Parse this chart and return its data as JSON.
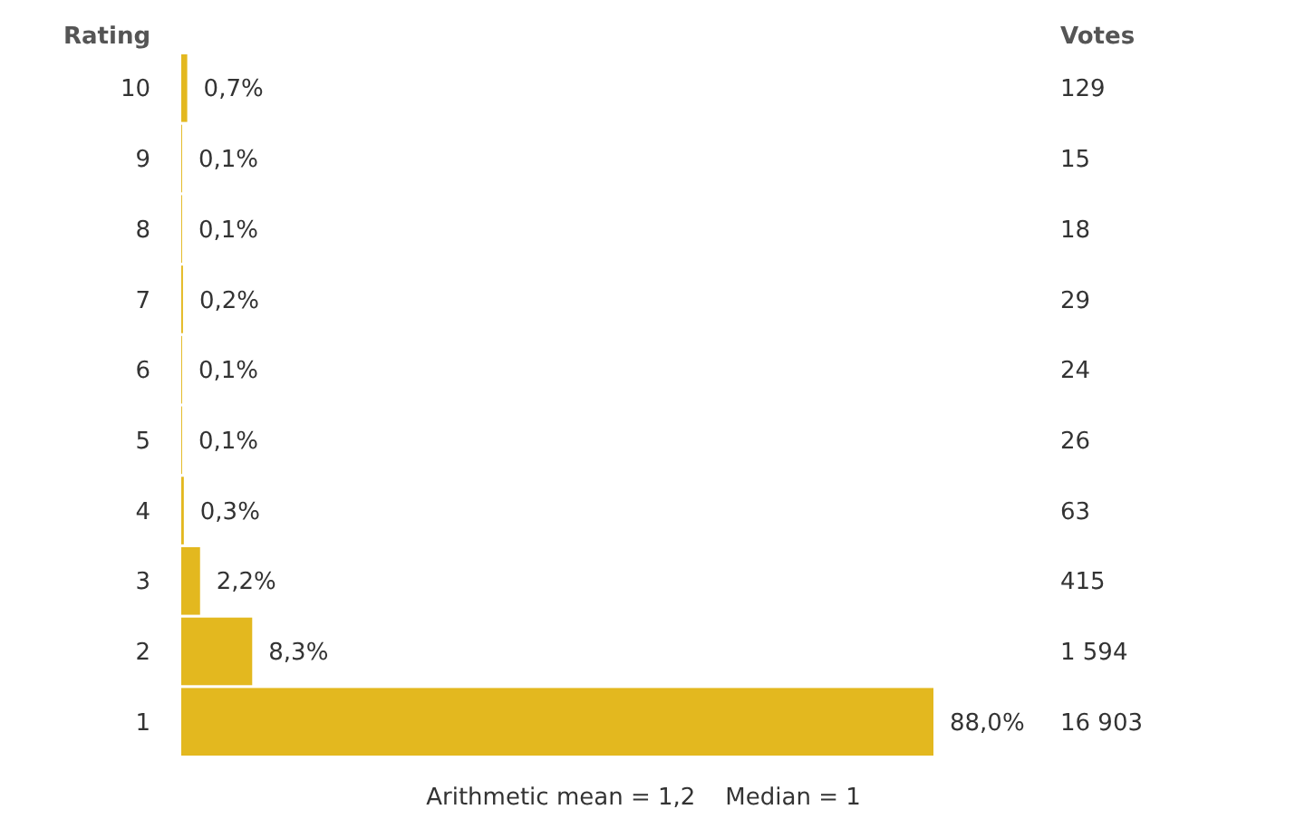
{
  "chart_data": {
    "type": "bar",
    "orientation": "horizontal",
    "ylabel": "Rating",
    "categories": [
      "10",
      "9",
      "8",
      "7",
      "6",
      "5",
      "4",
      "3",
      "2",
      "1"
    ],
    "values": [
      0.7,
      0.1,
      0.1,
      0.2,
      0.1,
      0.1,
      0.3,
      2.2,
      8.3,
      88.0
    ],
    "value_labels": [
      "0,7%",
      "0,1%",
      "0,1%",
      "0,2%",
      "0,1%",
      "0,1%",
      "0,3%",
      "2,2%",
      "8,3%",
      "88,0%"
    ],
    "color": "#e3b81f",
    "annotations": [
      "Votes",
      "129",
      "15",
      "18",
      "29",
      "24",
      "26",
      "63",
      "415",
      "1 594",
      "16 903",
      "Arithmetic mean = 1,2    Median = 1"
    ]
  }
}
